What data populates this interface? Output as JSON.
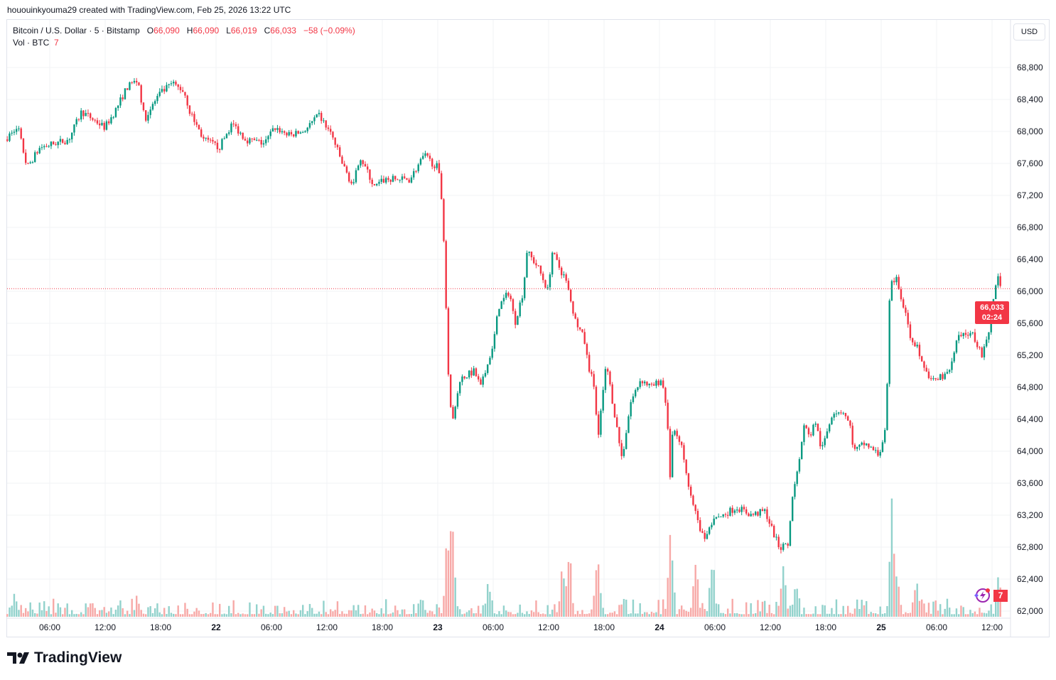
{
  "credit": "hououinkyouma29 created with TradingView.com, Feb 25, 2026 13:22 UTC",
  "legend": {
    "symbol": "Bitcoin / U.S. Dollar · 5 · Bitstamp",
    "o_label": "O",
    "o": "66,090",
    "h_label": "H",
    "h": "66,090",
    "l_label": "L",
    "l": "66,019",
    "c_label": "C",
    "c": "66,033",
    "change": "−58 (−0.09%)",
    "vol_label": "Vol · BTC",
    "vol": "7"
  },
  "currency_button": "USD",
  "price_tag": {
    "price": "66,033",
    "countdown": "02:24"
  },
  "volume_tag": "7",
  "logo_text": "TradingView",
  "colors": {
    "up": "#089981",
    "down": "#f23645",
    "vol_up": "#92d2cc",
    "vol_down": "#f7a9a7",
    "grid": "#f2f3f5"
  },
  "chart_data": {
    "type": "candlestick",
    "title": "Bitcoin / U.S. Dollar · 5 · Bitstamp",
    "time_unit": "hours since Feb 21 00:00 UTC",
    "ylim": [
      61900,
      69100
    ],
    "y_ticks": [
      "68,800",
      "68,400",
      "68,000",
      "67,600",
      "67,200",
      "66,800",
      "66,400",
      "66,000",
      "65,600",
      "65,200",
      "64,800",
      "64,400",
      "64,000",
      "63,600",
      "63,200",
      "62,800",
      "62,400",
      "62,000"
    ],
    "y_tick_values": [
      68800,
      68400,
      68000,
      67600,
      67200,
      66800,
      66400,
      66000,
      65600,
      65200,
      64800,
      64400,
      64000,
      63600,
      63200,
      62800,
      62400,
      62000
    ],
    "x_ticks": [
      {
        "t": 6,
        "label": "06:00"
      },
      {
        "t": 12,
        "label": "12:00"
      },
      {
        "t": 18,
        "label": "18:00"
      },
      {
        "t": 24,
        "label": "22",
        "bold": true
      },
      {
        "t": 30,
        "label": "06:00"
      },
      {
        "t": 36,
        "label": "12:00"
      },
      {
        "t": 42,
        "label": "18:00"
      },
      {
        "t": 48,
        "label": "23",
        "bold": true
      },
      {
        "t": 54,
        "label": "06:00"
      },
      {
        "t": 60,
        "label": "12:00"
      },
      {
        "t": 66,
        "label": "18:00"
      },
      {
        "t": 72,
        "label": "24",
        "bold": true
      },
      {
        "t": 78,
        "label": "06:00"
      },
      {
        "t": 84,
        "label": "12:00"
      },
      {
        "t": 90,
        "label": "18:00"
      },
      {
        "t": 96,
        "label": "25",
        "bold": true
      },
      {
        "t": 102,
        "label": "06:00"
      },
      {
        "t": 108,
        "label": "12:00"
      }
    ],
    "last_price": 66033,
    "price_path": [
      [
        1.4,
        67900
      ],
      [
        2.8,
        68050
      ],
      [
        3.8,
        67550
      ],
      [
        5.2,
        67800
      ],
      [
        8.3,
        67900
      ],
      [
        9.7,
        68250
      ],
      [
        12.2,
        68050
      ],
      [
        13.3,
        68250
      ],
      [
        14.6,
        68550
      ],
      [
        15.8,
        68650
      ],
      [
        16.5,
        68150
      ],
      [
        18,
        68450
      ],
      [
        19.5,
        68600
      ],
      [
        20.8,
        68500
      ],
      [
        21.4,
        68250
      ],
      [
        22.9,
        67900
      ],
      [
        24.6,
        67800
      ],
      [
        26,
        68100
      ],
      [
        27.5,
        67900
      ],
      [
        29.5,
        67850
      ],
      [
        30.6,
        68050
      ],
      [
        32.2,
        67950
      ],
      [
        33.7,
        68000
      ],
      [
        35.4,
        68200
      ],
      [
        36.8,
        67950
      ],
      [
        37.9,
        67600
      ],
      [
        39.1,
        67300
      ],
      [
        39.8,
        67700
      ],
      [
        41.4,
        67300
      ],
      [
        42.5,
        67400
      ],
      [
        45.2,
        67400
      ],
      [
        46.8,
        67700
      ],
      [
        47.7,
        67600
      ],
      [
        48.3,
        67550
      ],
      [
        48.8,
        67000
      ],
      [
        49.1,
        66000
      ],
      [
        49.4,
        65000
      ],
      [
        49.8,
        64300
      ],
      [
        50.6,
        64900
      ],
      [
        52.2,
        65000
      ],
      [
        52.9,
        64800
      ],
      [
        53.7,
        65100
      ],
      [
        54.5,
        65500
      ],
      [
        54.8,
        65800
      ],
      [
        56,
        66000
      ],
      [
        56.6,
        65600
      ],
      [
        57.5,
        66000
      ],
      [
        57.9,
        66500
      ],
      [
        59.1,
        66300
      ],
      [
        60.2,
        66000
      ],
      [
        60.6,
        66500
      ],
      [
        62.2,
        66100
      ],
      [
        62.9,
        65700
      ],
      [
        64.1,
        65400
      ],
      [
        64.5,
        65100
      ],
      [
        65.2,
        64800
      ],
      [
        65.6,
        64200
      ],
      [
        66.5,
        65100
      ],
      [
        67.2,
        64600
      ],
      [
        68.2,
        63900
      ],
      [
        69.1,
        64600
      ],
      [
        70.2,
        64900
      ],
      [
        71.4,
        64800
      ],
      [
        72.5,
        64900
      ],
      [
        73.1,
        64500
      ],
      [
        73.3,
        63500
      ],
      [
        73.7,
        64300
      ],
      [
        74.8,
        64000
      ],
      [
        75.4,
        63600
      ],
      [
        76.4,
        63100
      ],
      [
        77.2,
        62900
      ],
      [
        77.9,
        63100
      ],
      [
        79.1,
        63200
      ],
      [
        80.6,
        63300
      ],
      [
        82.2,
        63200
      ],
      [
        83.7,
        63250
      ],
      [
        84.5,
        63000
      ],
      [
        85.2,
        62800
      ],
      [
        86.2,
        62800
      ],
      [
        86.6,
        63400
      ],
      [
        87.2,
        63800
      ],
      [
        87.9,
        64300
      ],
      [
        88.7,
        64200
      ],
      [
        89.1,
        64400
      ],
      [
        89.8,
        64000
      ],
      [
        91,
        64500
      ],
      [
        92.2,
        64500
      ],
      [
        92.9,
        64300
      ],
      [
        93.3,
        64000
      ],
      [
        94.5,
        64100
      ],
      [
        96,
        63950
      ],
      [
        96.8,
        64300
      ],
      [
        97.1,
        65800
      ],
      [
        97.4,
        66100
      ],
      [
        97.9,
        66150
      ],
      [
        98.7,
        65800
      ],
      [
        99.5,
        65400
      ],
      [
        100.2,
        65300
      ],
      [
        100.6,
        65100
      ],
      [
        101.4,
        64900
      ],
      [
        102.2,
        64900
      ],
      [
        103.7,
        65000
      ],
      [
        104.5,
        65400
      ],
      [
        106,
        65500
      ],
      [
        107.2,
        65200
      ],
      [
        108,
        65500
      ],
      [
        108.3,
        65900
      ],
      [
        108.9,
        66150
      ],
      [
        109.1,
        66033
      ]
    ],
    "volume_spikes_relative": [
      [
        2.2,
        0.22
      ],
      [
        15.5,
        0.2
      ],
      [
        49.1,
        0.85
      ],
      [
        49.6,
        1.0
      ],
      [
        53.5,
        0.4
      ],
      [
        61.5,
        0.45
      ],
      [
        62.2,
        0.7
      ],
      [
        65.3,
        0.6
      ],
      [
        73.2,
        0.75
      ],
      [
        75.9,
        0.5
      ],
      [
        77.7,
        0.55
      ],
      [
        85.4,
        0.55
      ],
      [
        86.8,
        0.4
      ],
      [
        97.2,
        1.0
      ],
      [
        97.7,
        0.4
      ],
      [
        99.8,
        0.35
      ],
      [
        108.7,
        0.4
      ]
    ]
  }
}
